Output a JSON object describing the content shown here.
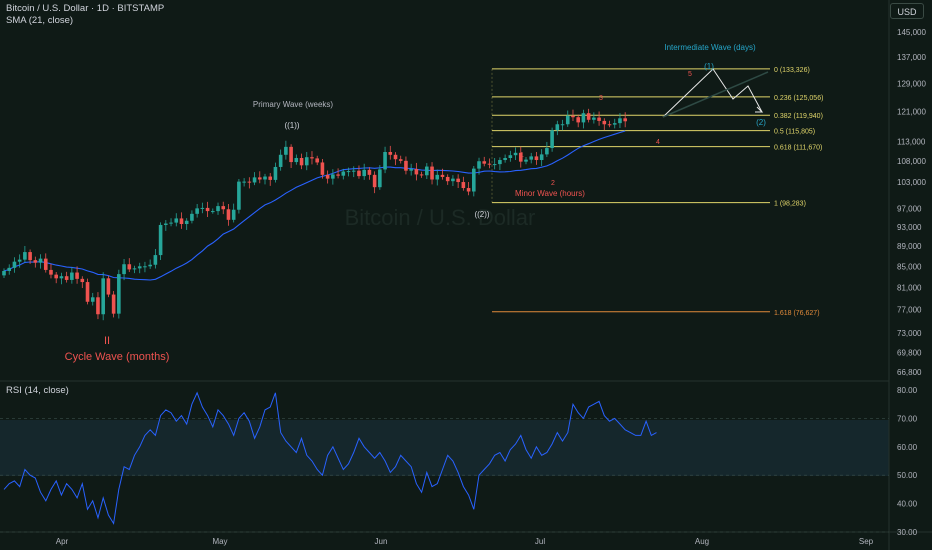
{
  "header": {
    "symbol_line": "Bitcoin / U.S. Dollar · 1D · BITSTAMP",
    "indicator_line": "SMA (21, close)"
  },
  "currency_button": "USD",
  "watermark": "Bitcoin / U.S. Dollar",
  "colors": {
    "background": "#0f1a16",
    "up": "#26a69a",
    "down": "#ef5350",
    "sma": "#2962ff",
    "rsi": "#2962ff",
    "fib": "#e0d56a",
    "fib_ext": "#e08a3a",
    "cycle_label": "#ef5350",
    "intermediate_label": "#26a6c9",
    "minor_label": "#ef5350",
    "primary_label": "#b2b5be"
  },
  "price_axis": {
    "ticks": [
      "145,000",
      "137,000",
      "129,000",
      "121,000",
      "113,000",
      "108,000",
      "103,000",
      "97,000",
      "93,000",
      "89,000",
      "85,000",
      "81,000",
      "77,000",
      "73,000",
      "69,800",
      "66,800"
    ]
  },
  "rsi_panel": {
    "label": "RSI (14, close)",
    "ticks": [
      "80.00",
      "70.00",
      "60.00",
      "50.00",
      "40.00",
      "30.00"
    ],
    "series": [
      45,
      47,
      48,
      46,
      52,
      50,
      49,
      44,
      41,
      45,
      48,
      43,
      47,
      45,
      42,
      47,
      38,
      41,
      35,
      42,
      36,
      33,
      45,
      53,
      52,
      57,
      60,
      64,
      66,
      64,
      71,
      73,
      72,
      69,
      71,
      68,
      75,
      79,
      74,
      71,
      67,
      73,
      71,
      68,
      64,
      70,
      72,
      69,
      63,
      67,
      73,
      74,
      79,
      65,
      62,
      60,
      58,
      63,
      57,
      55,
      52,
      50,
      57,
      60,
      56,
      52,
      54,
      58,
      63,
      60,
      58,
      56,
      58,
      55,
      51,
      53,
      57,
      55,
      53,
      47,
      44,
      51,
      46,
      47,
      52,
      57,
      55,
      51,
      46,
      43,
      38,
      50,
      52,
      54,
      57,
      58,
      55,
      59,
      61,
      64,
      59,
      56,
      60,
      57,
      58,
      61,
      65,
      62,
      65,
      75,
      72,
      70,
      74,
      75,
      76,
      71,
      69,
      70,
      68,
      66,
      65,
      64,
      64,
      69,
      64,
      65
    ]
  },
  "time_axis": {
    "labels": [
      "Apr",
      "May",
      "Jun",
      "Jul",
      "Aug",
      "Sep"
    ]
  },
  "chart_data": {
    "type": "candlestick",
    "title": "Bitcoin / U.S. Dollar · 1D · BITSTAMP",
    "indicators": [
      "SMA (21, close)",
      "RSI (14, close)"
    ],
    "closes": [
      84100,
      84700,
      85900,
      86300,
      87800,
      86200,
      85700,
      86500,
      84300,
      83400,
      82700,
      83100,
      82400,
      83800,
      82600,
      82000,
      78400,
      79200,
      76200,
      82700,
      79700,
      76300,
      83500,
      85400,
      84400,
      84600,
      85000,
      85000,
      85300,
      87200,
      93400,
      93700,
      93900,
      94800,
      93600,
      94300,
      95800,
      97000,
      97100,
      96400,
      96400,
      97500,
      96800,
      94500,
      96700,
      103100,
      103100,
      102900,
      104100,
      103600,
      104300,
      103500,
      106600,
      109600,
      111600,
      107800,
      108800,
      107000,
      109000,
      108700,
      107700,
      104700,
      103800,
      104800,
      104500,
      105500,
      105600,
      105700,
      104400,
      105900,
      104700,
      101800,
      106000,
      110300,
      109600,
      108500,
      108100,
      105700,
      106100,
      104800,
      104600,
      106700,
      103600,
      104700,
      104200,
      103200,
      103800,
      103000,
      101600,
      100800,
      106200,
      108000,
      107400,
      107200,
      107300,
      108300,
      108800,
      109500,
      110100,
      107900,
      108400,
      109200,
      108300,
      109700,
      111300,
      115900,
      117500,
      117500,
      119800,
      119400,
      118000,
      120500,
      118700,
      119300,
      118400,
      117500,
      117400,
      117800,
      119100,
      118300
    ],
    "fibonacci_levels": [
      {
        "label": "0 (133,326)",
        "value": 133326
      },
      {
        "label": "0.236 (125,056)",
        "value": 125056
      },
      {
        "label": "0.382 (119,940)",
        "value": 119940
      },
      {
        "label": "0.5 (115,805)",
        "value": 115805
      },
      {
        "label": "0.618 (111,670)",
        "value": 111670
      },
      {
        "label": "1 (98,283)",
        "value": 98283
      },
      {
        "label": "1.618 (76,627)",
        "value": 76627
      }
    ],
    "wave_labels": {
      "cycle_number": "II",
      "cycle_text": "Cycle Wave (months)",
      "primary_text": "Primary Wave (weeks)",
      "primary_1": "((1))",
      "primary_2": "((2))",
      "intermediate_text": "Intermediate Wave (days)",
      "intermediate_1": "(1)",
      "intermediate_2": "(2)",
      "minor_text": "Minor Wave (hours)",
      "minor_1": "1",
      "minor_2": "2",
      "minor_3": "3",
      "minor_4": "4",
      "minor_5": "5"
    }
  }
}
